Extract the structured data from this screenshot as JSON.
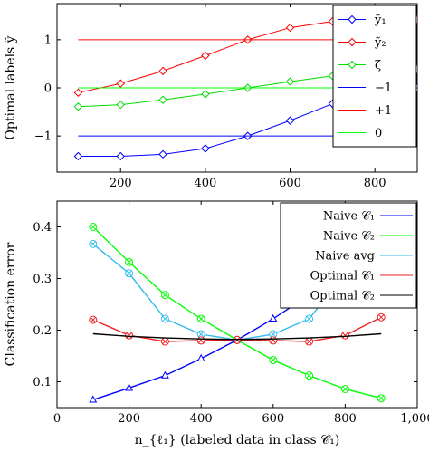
{
  "figure": {
    "xlabel_top": "",
    "xlabel_bottom": "n_{ℓ₁} (labeled data in class 𝒞₁)"
  },
  "chart_data": [
    {
      "type": "line",
      "title": "",
      "xlabel": "",
      "ylabel": "Optimal labels ỹ",
      "xlim": [
        50,
        900
      ],
      "ylim": [
        -1.75,
        1.75
      ],
      "xticks": [
        200,
        400,
        600,
        800
      ],
      "xtick_labels": [
        "200",
        "400",
        "600",
        "800"
      ],
      "yticks": [
        -1,
        0,
        1
      ],
      "ytick_labels": [
        "−1",
        "0",
        "1"
      ],
      "legend_position": "top-right",
      "grid": false,
      "series": [
        {
          "name": "ỹ₁",
          "color": "#0000ff",
          "marker": "diamond",
          "x": [
            100,
            200,
            300,
            400,
            500,
            600,
            700,
            800,
            900
          ],
          "y": [
            -1.42,
            -1.42,
            -1.38,
            -1.26,
            -1.0,
            -0.68,
            -0.33,
            0.0,
            0.0
          ]
        },
        {
          "name": "ỹ₂",
          "color": "#ff0000",
          "marker": "diamond",
          "x": [
            100,
            200,
            300,
            400,
            500,
            600,
            700,
            800,
            900
          ],
          "y": [
            -0.1,
            0.09,
            0.35,
            0.67,
            1.0,
            1.25,
            1.38,
            1.42,
            1.42
          ]
        },
        {
          "name": "ζ",
          "color": "#00dd00",
          "marker": "diamond",
          "x": [
            100,
            200,
            300,
            400,
            500,
            600,
            700,
            800,
            900
          ],
          "y": [
            -0.39,
            -0.35,
            -0.25,
            -0.13,
            0.0,
            0.13,
            0.25,
            0.35,
            0.39
          ]
        },
        {
          "name": "−1",
          "color": "#0000ff",
          "marker": "none",
          "x": [
            100,
            900
          ],
          "y": [
            -1,
            -1
          ]
        },
        {
          "name": "+1",
          "color": "#ff0000",
          "marker": "none",
          "x": [
            100,
            900
          ],
          "y": [
            1,
            1
          ]
        },
        {
          "name": "0",
          "color": "#00ff00",
          "marker": "none",
          "x": [
            100,
            900
          ],
          "y": [
            0,
            0
          ]
        }
      ]
    },
    {
      "type": "line",
      "title": "",
      "xlabel": "n_{ℓ₁} (labeled data in class 𝒞₁)",
      "ylabel": "Classification error",
      "xlim": [
        0,
        1000
      ],
      "ylim": [
        0.05,
        0.45
      ],
      "xticks": [
        0,
        200,
        400,
        600,
        800,
        1000
      ],
      "xtick_labels": [
        "0",
        "200",
        "400",
        "600",
        "800",
        "1,000"
      ],
      "yticks": [
        0.1,
        0.2,
        0.3,
        0.4
      ],
      "ytick_labels": [
        "0.1",
        "0.2",
        "0.3",
        "0.4"
      ],
      "legend_position": "top-right",
      "grid": false,
      "series": [
        {
          "name": "Naive 𝒞₁",
          "color": "#0000ff",
          "marker": "triangle",
          "x": [
            100,
            200,
            300,
            400,
            500,
            600,
            700,
            800,
            900
          ],
          "y": [
            0.065,
            0.088,
            0.112,
            0.145,
            0.181,
            0.222,
            0.268,
            0.322,
            0.378
          ]
        },
        {
          "name": "Naive 𝒞₂",
          "color": "#00ff00",
          "marker": "circle-x",
          "x": [
            100,
            200,
            300,
            400,
            500,
            600,
            700,
            800,
            900
          ],
          "y": [
            0.4,
            0.332,
            0.268,
            0.222,
            0.181,
            0.142,
            0.112,
            0.086,
            0.068
          ]
        },
        {
          "name": "Naive avg",
          "color": "#33bbee",
          "marker": "circle-x",
          "x": [
            100,
            200,
            300,
            400,
            500,
            600,
            700,
            800,
            900
          ],
          "y": [
            0.367,
            0.31,
            0.222,
            0.192,
            0.181,
            0.192,
            0.222,
            0.31,
            0.367
          ]
        },
        {
          "name": "Optimal 𝒞₁",
          "color": "#ee2222",
          "marker": "circle-x",
          "x": [
            100,
            200,
            300,
            400,
            500,
            600,
            700,
            800,
            900
          ],
          "y": [
            0.22,
            0.19,
            0.178,
            0.18,
            0.181,
            0.18,
            0.178,
            0.19,
            0.225
          ]
        },
        {
          "name": "Optimal 𝒞₂",
          "color": "#000000",
          "marker": "none",
          "x": [
            100,
            200,
            300,
            400,
            500,
            600,
            700,
            800,
            900
          ],
          "y": [
            0.193,
            0.188,
            0.185,
            0.183,
            0.182,
            0.183,
            0.185,
            0.188,
            0.193
          ]
        }
      ]
    }
  ]
}
